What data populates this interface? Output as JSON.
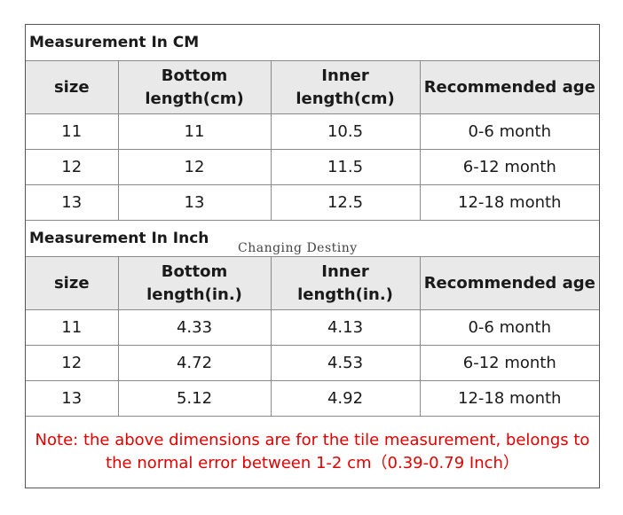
{
  "cm_section": {
    "title": "Measurement In CM",
    "headers": [
      "size",
      "Bottom length(cm)",
      "Inner length(cm)",
      "Recommended age"
    ],
    "rows": [
      [
        "11",
        "11",
        "10.5",
        "0-6 month"
      ],
      [
        "12",
        "12",
        "11.5",
        "6-12 month"
      ],
      [
        "13",
        "13",
        "12.5",
        "12-18 month"
      ]
    ]
  },
  "inch_section": {
    "title": "Measurement In Inch",
    "headers": [
      "size",
      "Bottom length(in.)",
      "Inner length(in.)",
      "Recommended age"
    ],
    "rows": [
      [
        "11",
        "4.33",
        "4.13",
        "0-6 month"
      ],
      [
        "12",
        "4.72",
        "4.53",
        "6-12 month"
      ],
      [
        "13",
        "5.12",
        "4.92",
        "12-18 month"
      ]
    ]
  },
  "watermark": "Changing Destiny",
  "note": "Note: the above dimensions are for the tile measurement, belongs to the normal error between 1-2 cm（0.39-0.79  Inch）"
}
